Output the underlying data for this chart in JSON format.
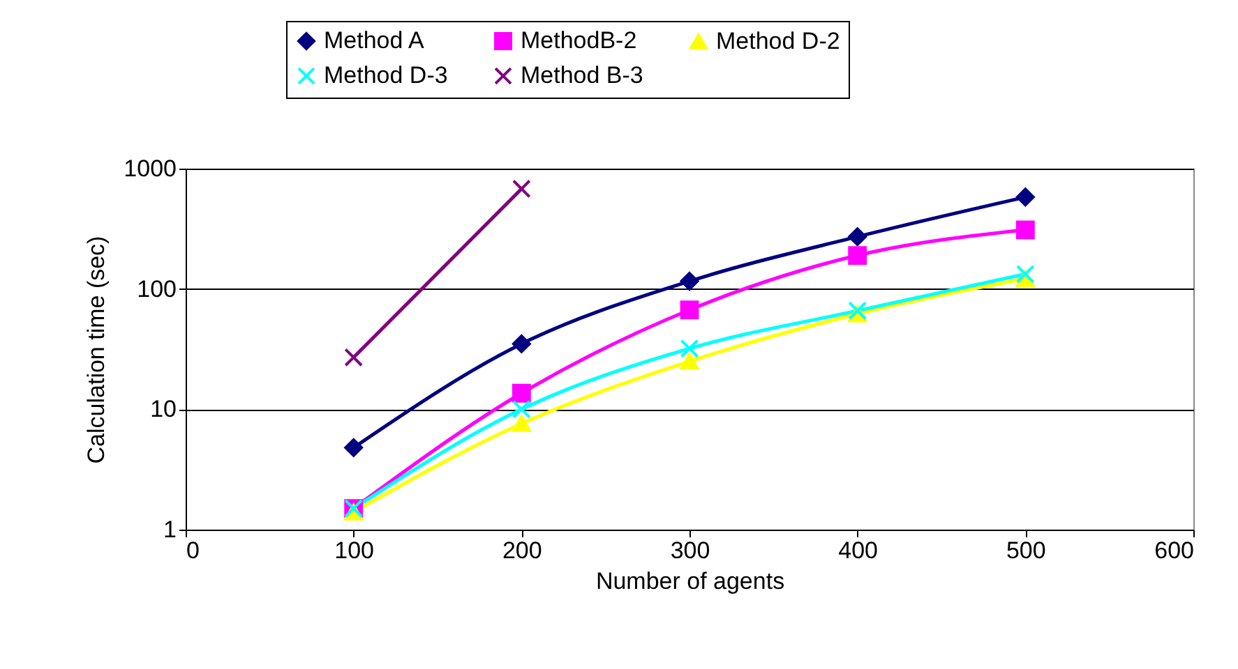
{
  "chart_data": {
    "type": "line",
    "xlabel": "Number of agents",
    "ylabel": "Calculation time (sec)",
    "x": [
      100,
      200,
      300,
      400,
      500
    ],
    "xlim": [
      0,
      600
    ],
    "xticks": [
      0,
      100,
      200,
      300,
      400,
      500,
      600
    ],
    "ylim": [
      1,
      1000
    ],
    "yticks": [
      1,
      10,
      100,
      1000
    ],
    "log": "y",
    "grid": "y",
    "legend": "top",
    "line_style": "solid",
    "series": [
      {
        "name": "Method A",
        "color": "#000080",
        "marker": "diamond",
        "values": [
          4.8,
          35,
          116,
          272,
          580
        ]
      },
      {
        "name": "MethodB-2",
        "color": "#ff00ff",
        "marker": "square",
        "values": [
          1.5,
          13.6,
          67,
          190,
          310
        ]
      },
      {
        "name": "Method D-2",
        "color": "#ffff00",
        "marker": "triangle",
        "values": [
          1.4,
          7.6,
          25,
          62,
          122
        ]
      },
      {
        "name": "Method D-3",
        "color": "#00ffff",
        "marker": "cross",
        "values": [
          1.5,
          10,
          32,
          66,
          133
        ]
      },
      {
        "name": "Method B-3",
        "color": "#800080",
        "marker": "cross",
        "values": [
          27,
          680,
          null,
          null,
          null
        ]
      }
    ]
  }
}
